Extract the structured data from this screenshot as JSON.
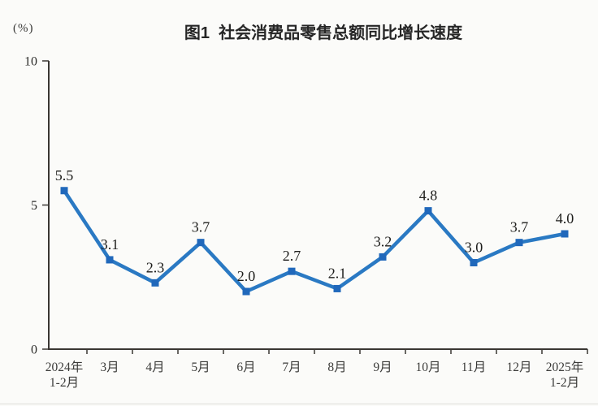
{
  "page": {
    "background_color": "#fbfbf9",
    "divider_color": "#dededa"
  },
  "chart_data": {
    "type": "line",
    "title": "图1  社会消费品零售总额同比增长速度",
    "unit_label": "(%)",
    "categories": [
      "2024年\n1-2月",
      "3月",
      "4月",
      "5月",
      "6月",
      "7月",
      "8月",
      "9月",
      "10月",
      "11月",
      "12月",
      "2025年\n1-2月"
    ],
    "values": [
      5.5,
      3.1,
      2.3,
      3.7,
      2.0,
      2.7,
      2.1,
      3.2,
      4.8,
      3.0,
      3.7,
      4.0
    ],
    "point_labels": [
      "5.5",
      "3.1",
      "2.3",
      "3.7",
      "2.0",
      "2.7",
      "2.1",
      "3.2",
      "4.8",
      "3.0",
      "3.7",
      "4.0"
    ],
    "xlabel": "",
    "ylabel": "(%)",
    "ylim": [
      0,
      10
    ],
    "yticks": [
      0,
      5,
      10
    ],
    "grid": false,
    "legend": null,
    "line_color": "#2a79c3",
    "marker_color": "#2068bb",
    "axis_color": "#3a3733"
  }
}
